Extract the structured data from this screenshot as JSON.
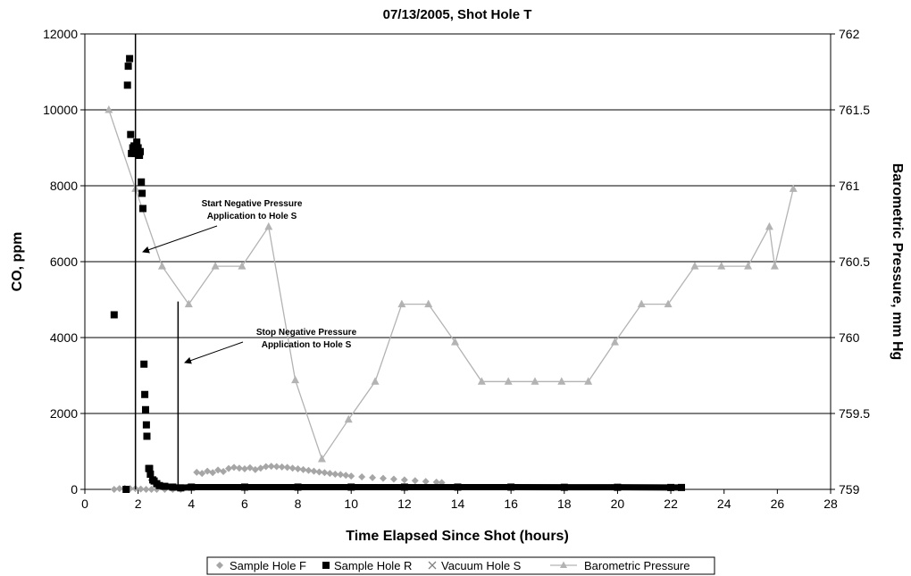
{
  "chart_data": {
    "type": "scatter",
    "title": "07/13/2005, Shot Hole T",
    "xlabel": "Time Elapsed Since Shot (hours)",
    "ylabel": "CO, ppm",
    "y2label": "Barometric Pressure, mm Hg",
    "xlim": [
      0,
      28
    ],
    "ylim": [
      0,
      12000
    ],
    "y2lim": [
      759,
      762
    ],
    "x_ticks": [
      0,
      2,
      4,
      6,
      8,
      10,
      12,
      14,
      16,
      18,
      20,
      22,
      24,
      26,
      28
    ],
    "y_ticks": [
      0,
      2000,
      4000,
      6000,
      8000,
      10000,
      12000
    ],
    "y2_ticks": [
      759,
      759.5,
      760,
      760.5,
      761,
      761.5,
      762
    ],
    "y2_tick_labels": [
      "759",
      "759.5",
      "760",
      "760.5",
      "761",
      "761.5",
      "762"
    ],
    "grid": "horizontal",
    "legend_position": "bottom",
    "series": [
      {
        "name": "Sample Hole F",
        "marker": "diamond",
        "color": "#a6a6a6",
        "axis": "left",
        "points": [
          [
            1.1,
            0
          ],
          [
            1.3,
            20
          ],
          [
            1.5,
            30
          ],
          [
            1.7,
            20
          ],
          [
            1.9,
            20
          ],
          [
            2.1,
            10
          ],
          [
            2.3,
            0
          ],
          [
            2.5,
            0
          ],
          [
            2.7,
            0
          ],
          [
            3.0,
            0
          ],
          [
            3.3,
            0
          ],
          [
            3.6,
            0
          ],
          [
            4.2,
            450
          ],
          [
            4.4,
            420
          ],
          [
            4.6,
            480
          ],
          [
            4.8,
            440
          ],
          [
            5.0,
            510
          ],
          [
            5.2,
            470
          ],
          [
            5.4,
            550
          ],
          [
            5.6,
            580
          ],
          [
            5.8,
            560
          ],
          [
            6.0,
            540
          ],
          [
            6.2,
            570
          ],
          [
            6.4,
            520
          ],
          [
            6.6,
            560
          ],
          [
            6.8,
            600
          ],
          [
            7.0,
            610
          ],
          [
            7.2,
            600
          ],
          [
            7.4,
            590
          ],
          [
            7.6,
            580
          ],
          [
            7.8,
            560
          ],
          [
            8.0,
            540
          ],
          [
            8.2,
            520
          ],
          [
            8.4,
            500
          ],
          [
            8.6,
            480
          ],
          [
            8.8,
            460
          ],
          [
            9.0,
            440
          ],
          [
            9.2,
            420
          ],
          [
            9.4,
            400
          ],
          [
            9.6,
            390
          ],
          [
            9.8,
            370
          ],
          [
            10.0,
            350
          ],
          [
            10.4,
            330
          ],
          [
            10.8,
            310
          ],
          [
            11.2,
            290
          ],
          [
            11.6,
            270
          ],
          [
            12.0,
            250
          ],
          [
            12.4,
            230
          ],
          [
            12.8,
            210
          ],
          [
            13.2,
            190
          ],
          [
            13.4,
            180
          ]
        ]
      },
      {
        "name": "Sample Hole R",
        "marker": "square",
        "color": "#000000",
        "axis": "left",
        "points": [
          [
            1.1,
            4600
          ],
          [
            1.55,
            0
          ],
          [
            1.6,
            10650
          ],
          [
            1.63,
            11150
          ],
          [
            1.68,
            11350
          ],
          [
            1.72,
            9350
          ],
          [
            1.75,
            8850
          ],
          [
            1.8,
            9000
          ],
          [
            1.85,
            9050
          ],
          [
            1.9,
            8850
          ],
          [
            1.95,
            9150
          ],
          [
            2.0,
            9000
          ],
          [
            2.05,
            8800
          ],
          [
            2.08,
            8900
          ],
          [
            2.12,
            8100
          ],
          [
            2.15,
            7800
          ],
          [
            2.18,
            7400
          ],
          [
            2.22,
            3300
          ],
          [
            2.25,
            2500
          ],
          [
            2.28,
            2100
          ],
          [
            2.31,
            1700
          ],
          [
            2.33,
            1400
          ],
          [
            2.4,
            550
          ],
          [
            2.43,
            550
          ],
          [
            2.46,
            400
          ],
          [
            2.55,
            250
          ],
          [
            2.6,
            220
          ],
          [
            2.7,
            150
          ],
          [
            2.8,
            100
          ],
          [
            3.0,
            80
          ],
          [
            3.3,
            60
          ],
          [
            3.6,
            40
          ],
          [
            4,
            60
          ],
          [
            6,
            60
          ],
          [
            8,
            60
          ],
          [
            10,
            60
          ],
          [
            12,
            60
          ],
          [
            14,
            60
          ],
          [
            16,
            60
          ],
          [
            18,
            55
          ],
          [
            20,
            55
          ],
          [
            22,
            50
          ],
          [
            22.4,
            50
          ]
        ]
      },
      {
        "name": "Vacuum Hole S",
        "marker": "cross",
        "color": "#808080",
        "axis": "left",
        "points": []
      },
      {
        "name": "Barometric Pressure",
        "marker": "triangle",
        "color": "#b3b3b3",
        "axis": "right",
        "line": true,
        "points": [
          [
            0.9,
            761.5
          ],
          [
            1.9,
            760.98
          ],
          [
            2.9,
            760.47
          ],
          [
            3.9,
            760.22
          ],
          [
            4.9,
            760.47
          ],
          [
            5.9,
            760.47
          ],
          [
            6.9,
            760.73
          ],
          [
            7.9,
            759.72
          ],
          [
            8.9,
            759.2
          ],
          [
            9.9,
            759.46
          ],
          [
            10.9,
            759.71
          ],
          [
            11.9,
            760.22
          ],
          [
            12.9,
            760.22
          ],
          [
            13.9,
            759.97
          ],
          [
            14.9,
            759.71
          ],
          [
            15.9,
            759.71
          ],
          [
            16.9,
            759.71
          ],
          [
            17.9,
            759.71
          ],
          [
            18.9,
            759.71
          ],
          [
            19.9,
            759.97
          ],
          [
            20.9,
            760.22
          ],
          [
            21.9,
            760.22
          ],
          [
            22.9,
            760.47
          ],
          [
            23.9,
            760.47
          ],
          [
            24.9,
            760.47
          ],
          [
            25.7,
            760.73
          ],
          [
            25.9,
            760.47
          ],
          [
            26.6,
            760.98
          ]
        ]
      }
    ],
    "vertical_lines": [
      {
        "x": 1.9,
        "y_from": 0,
        "y_to": 12000
      },
      {
        "x": 3.5,
        "y_from": 0,
        "y_to": 4950
      }
    ],
    "annotations": [
      {
        "line1": "Start Negative Pressure",
        "line2": "Application to Hole S"
      },
      {
        "line1": "Stop Negative Pressure",
        "line2": "Application to Hole S"
      }
    ]
  }
}
